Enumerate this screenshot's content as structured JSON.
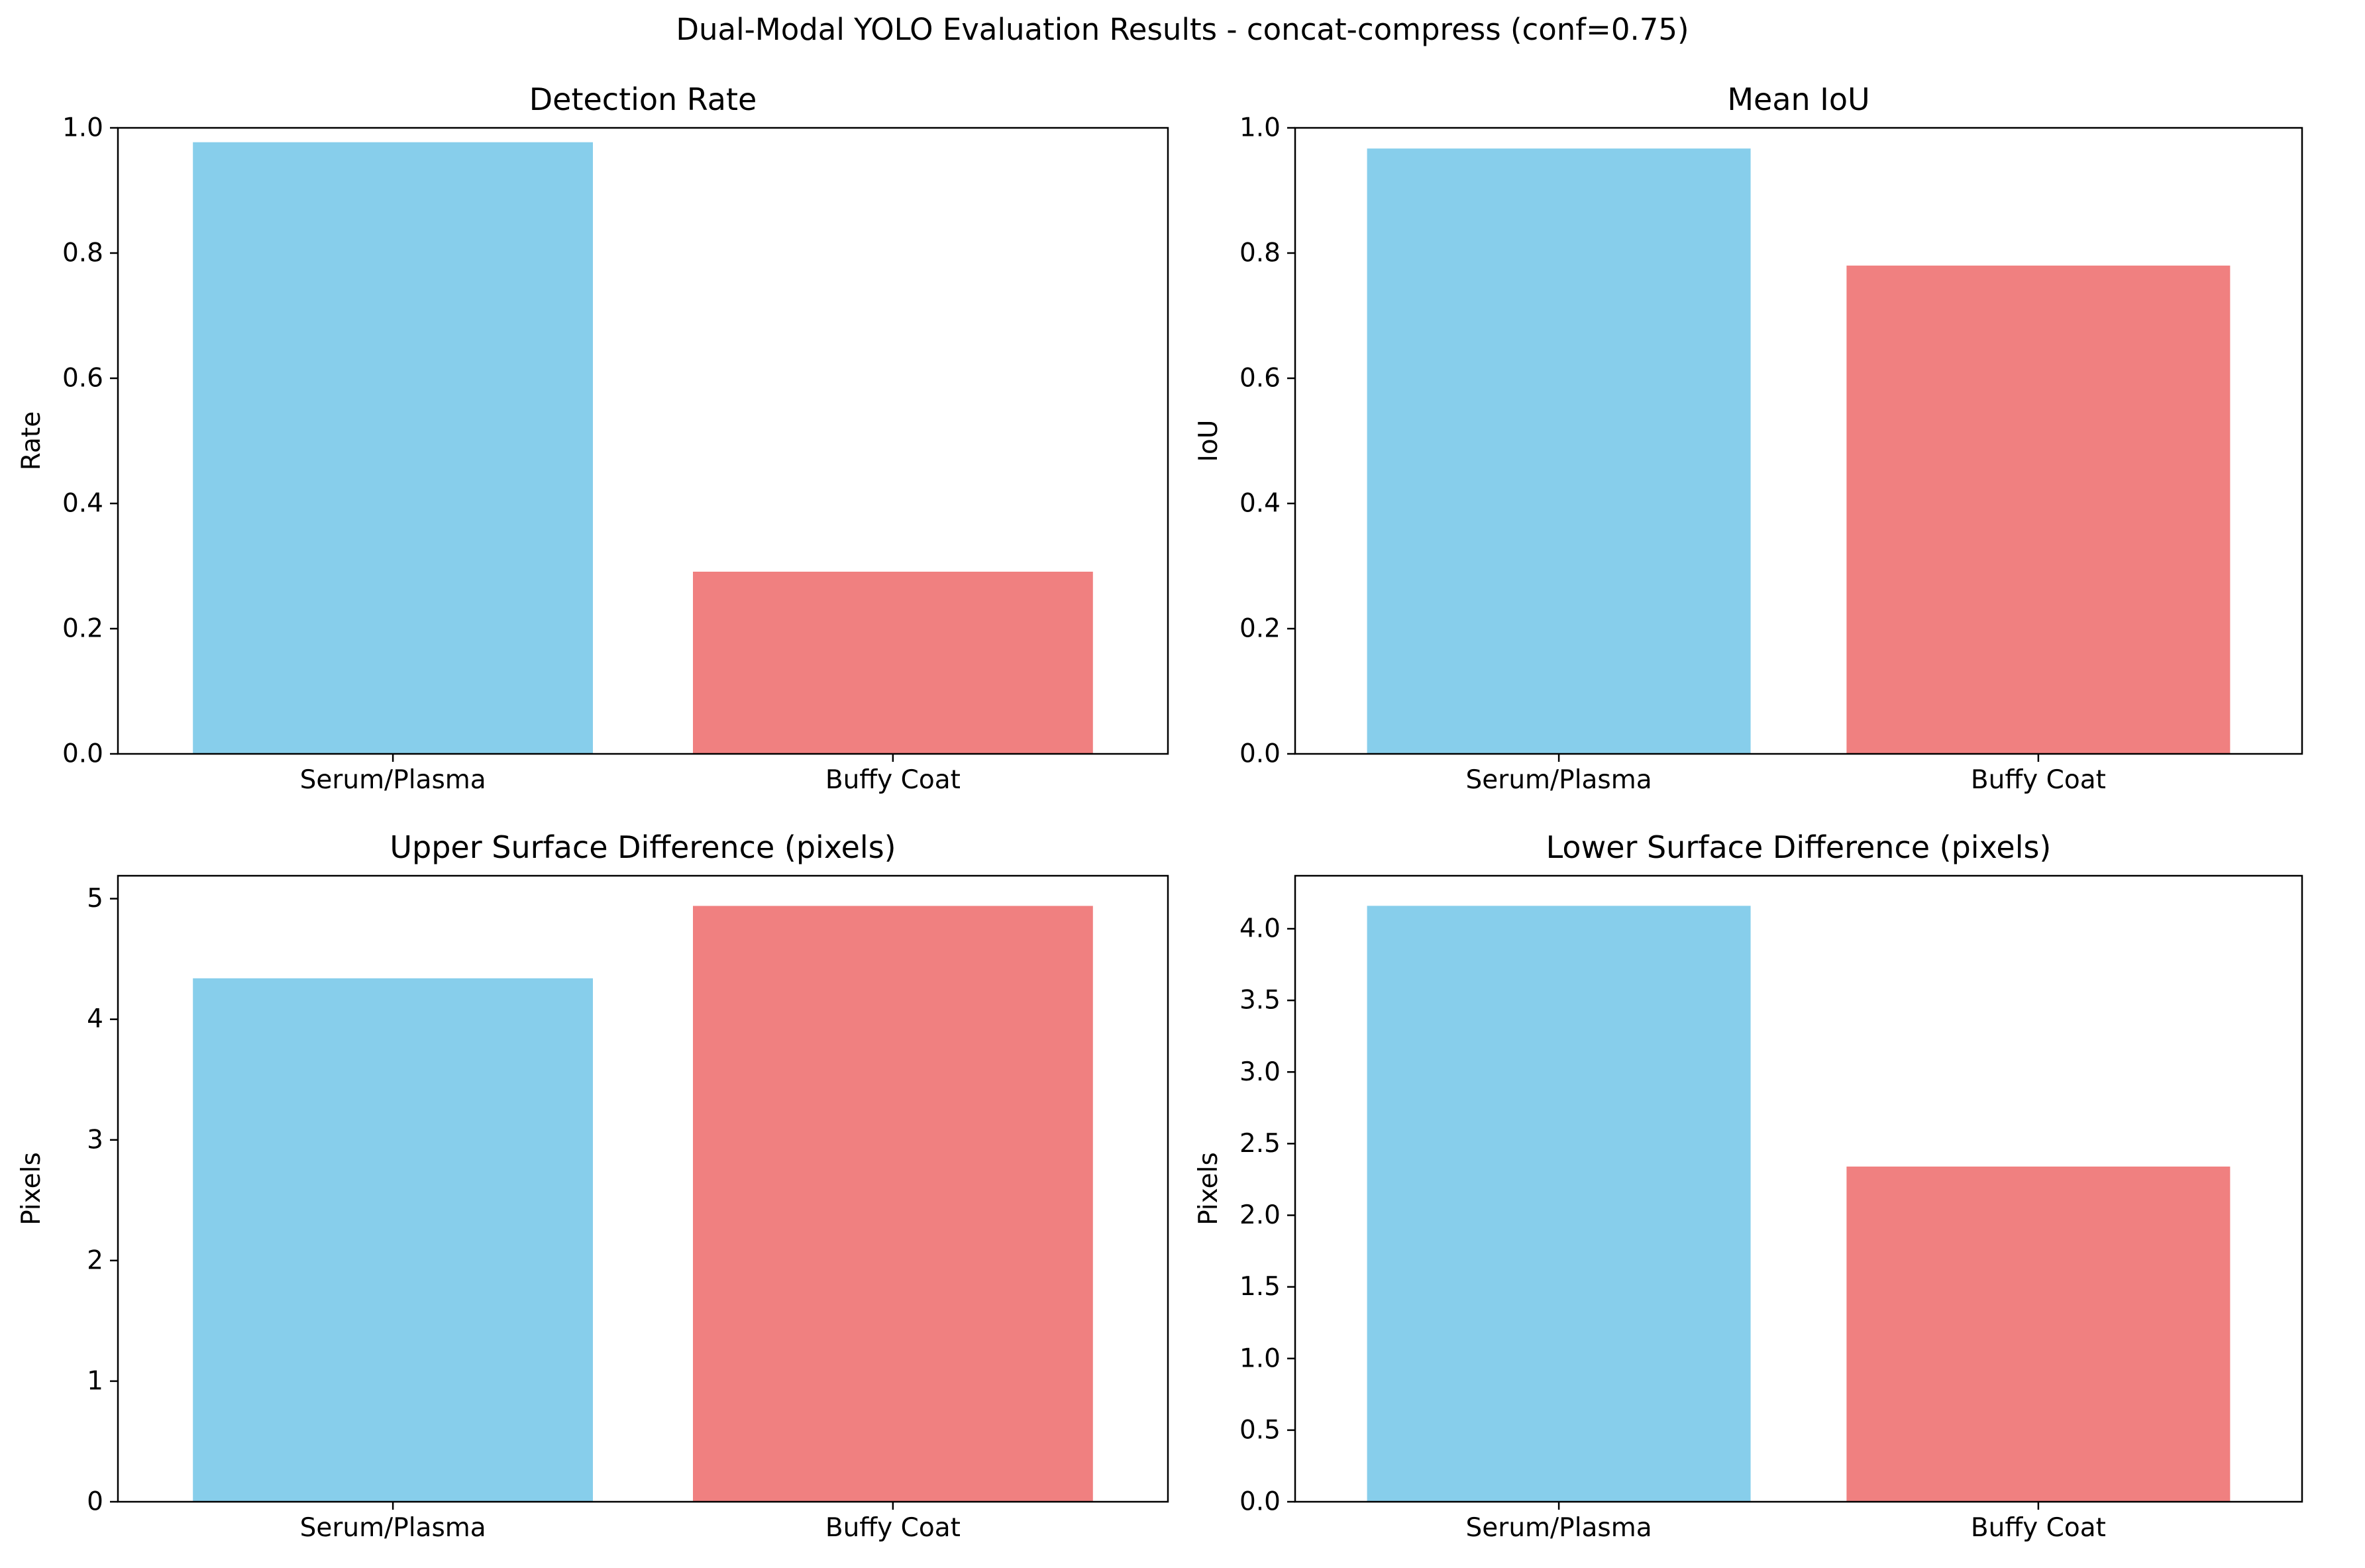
{
  "figure": {
    "title": "Dual-Modal YOLO Evaluation Results - concat-compress (conf=0.75)"
  },
  "colors": {
    "serum": "#87CEEB",
    "buffy": "#F08080",
    "axis": "#000000"
  },
  "chart_data": [
    {
      "type": "bar",
      "title": "Detection Rate",
      "xlabel": "",
      "ylabel": "Rate",
      "categories": [
        "Serum/Plasma",
        "Buffy Coat"
      ],
      "values": [
        0.977,
        0.291
      ],
      "ylim": [
        0,
        1.0
      ],
      "yticks": [
        0.0,
        0.2,
        0.4,
        0.6,
        0.8,
        1.0
      ],
      "ytick_labels": [
        "0.0",
        "0.2",
        "0.4",
        "0.6",
        "0.8",
        "1.0"
      ],
      "grid": false
    },
    {
      "type": "bar",
      "title": "Mean IoU",
      "xlabel": "",
      "ylabel": "IoU",
      "categories": [
        "Serum/Plasma",
        "Buffy Coat"
      ],
      "values": [
        0.967,
        0.78
      ],
      "ylim": [
        0,
        1.0
      ],
      "yticks": [
        0.0,
        0.2,
        0.4,
        0.6,
        0.8,
        1.0
      ],
      "ytick_labels": [
        "0.0",
        "0.2",
        "0.4",
        "0.6",
        "0.8",
        "1.0"
      ],
      "grid": false
    },
    {
      "type": "bar",
      "title": "Upper Surface Difference (pixels)",
      "xlabel": "",
      "ylabel": "Pixels",
      "categories": [
        "Serum/Plasma",
        "Buffy Coat"
      ],
      "values": [
        4.34,
        4.94
      ],
      "ylim": [
        0,
        5.19
      ],
      "yticks": [
        0,
        1,
        2,
        3,
        4,
        5
      ],
      "ytick_labels": [
        "0",
        "1",
        "2",
        "3",
        "4",
        "5"
      ],
      "grid": false
    },
    {
      "type": "bar",
      "title": "Lower Surface Difference (pixels)",
      "xlabel": "",
      "ylabel": "Pixels",
      "categories": [
        "Serum/Plasma",
        "Buffy Coat"
      ],
      "values": [
        4.16,
        2.34
      ],
      "ylim": [
        0,
        4.37
      ],
      "yticks": [
        0.0,
        0.5,
        1.0,
        1.5,
        2.0,
        2.5,
        3.0,
        3.5,
        4.0
      ],
      "ytick_labels": [
        "0.0",
        "0.5",
        "1.0",
        "1.5",
        "2.0",
        "2.5",
        "3.0",
        "3.5",
        "4.0"
      ],
      "grid": false
    }
  ]
}
